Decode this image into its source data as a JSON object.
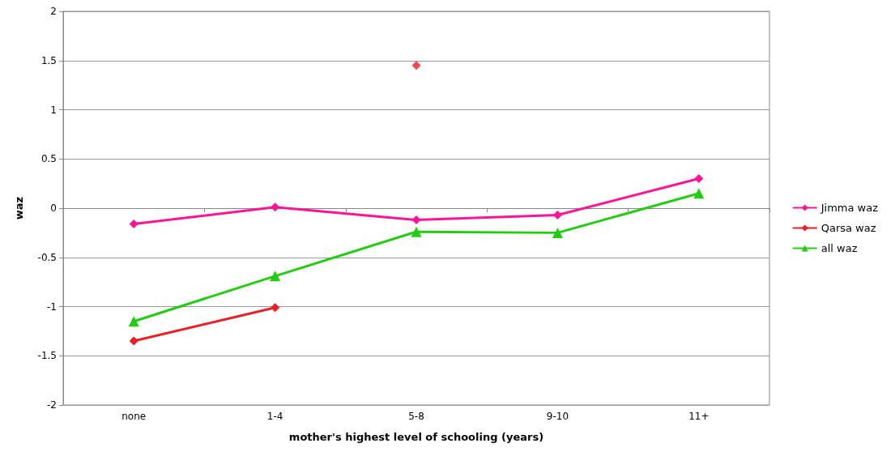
{
  "chart_data": {
    "type": "line",
    "xlabel": "mother's highest level of schooling (years)",
    "ylabel": "waz",
    "categories": [
      "none",
      "1-4",
      "5-8",
      "9-10",
      "11+"
    ],
    "ylim": [
      -2,
      2
    ],
    "yticks": [
      -2,
      -1.5,
      -1,
      -0.5,
      0,
      0.5,
      1,
      1.5,
      2
    ],
    "grid": "y",
    "legend": "right",
    "series": [
      {
        "name": "Jimma waz",
        "color": "#ff1493",
        "marker": "diamond",
        "values": [
          -0.16,
          0.01,
          -0.12,
          -0.07,
          0.3
        ]
      },
      {
        "name": "Qarsa waz",
        "color": "#ee1c25",
        "marker": "diamond",
        "values": [
          -1.35,
          -1.01,
          null,
          null,
          null
        ]
      },
      {
        "type": "scatter",
        "color": "#ee1c25",
        "marker": "diamond",
        "values": [
          null,
          null,
          1.45,
          null,
          null
        ]
      },
      {
        "name": "all waz",
        "color": "#22cc11",
        "marker": "triangle",
        "values": [
          -1.15,
          -0.69,
          -0.24,
          -0.25,
          0.15
        ]
      }
    ]
  }
}
